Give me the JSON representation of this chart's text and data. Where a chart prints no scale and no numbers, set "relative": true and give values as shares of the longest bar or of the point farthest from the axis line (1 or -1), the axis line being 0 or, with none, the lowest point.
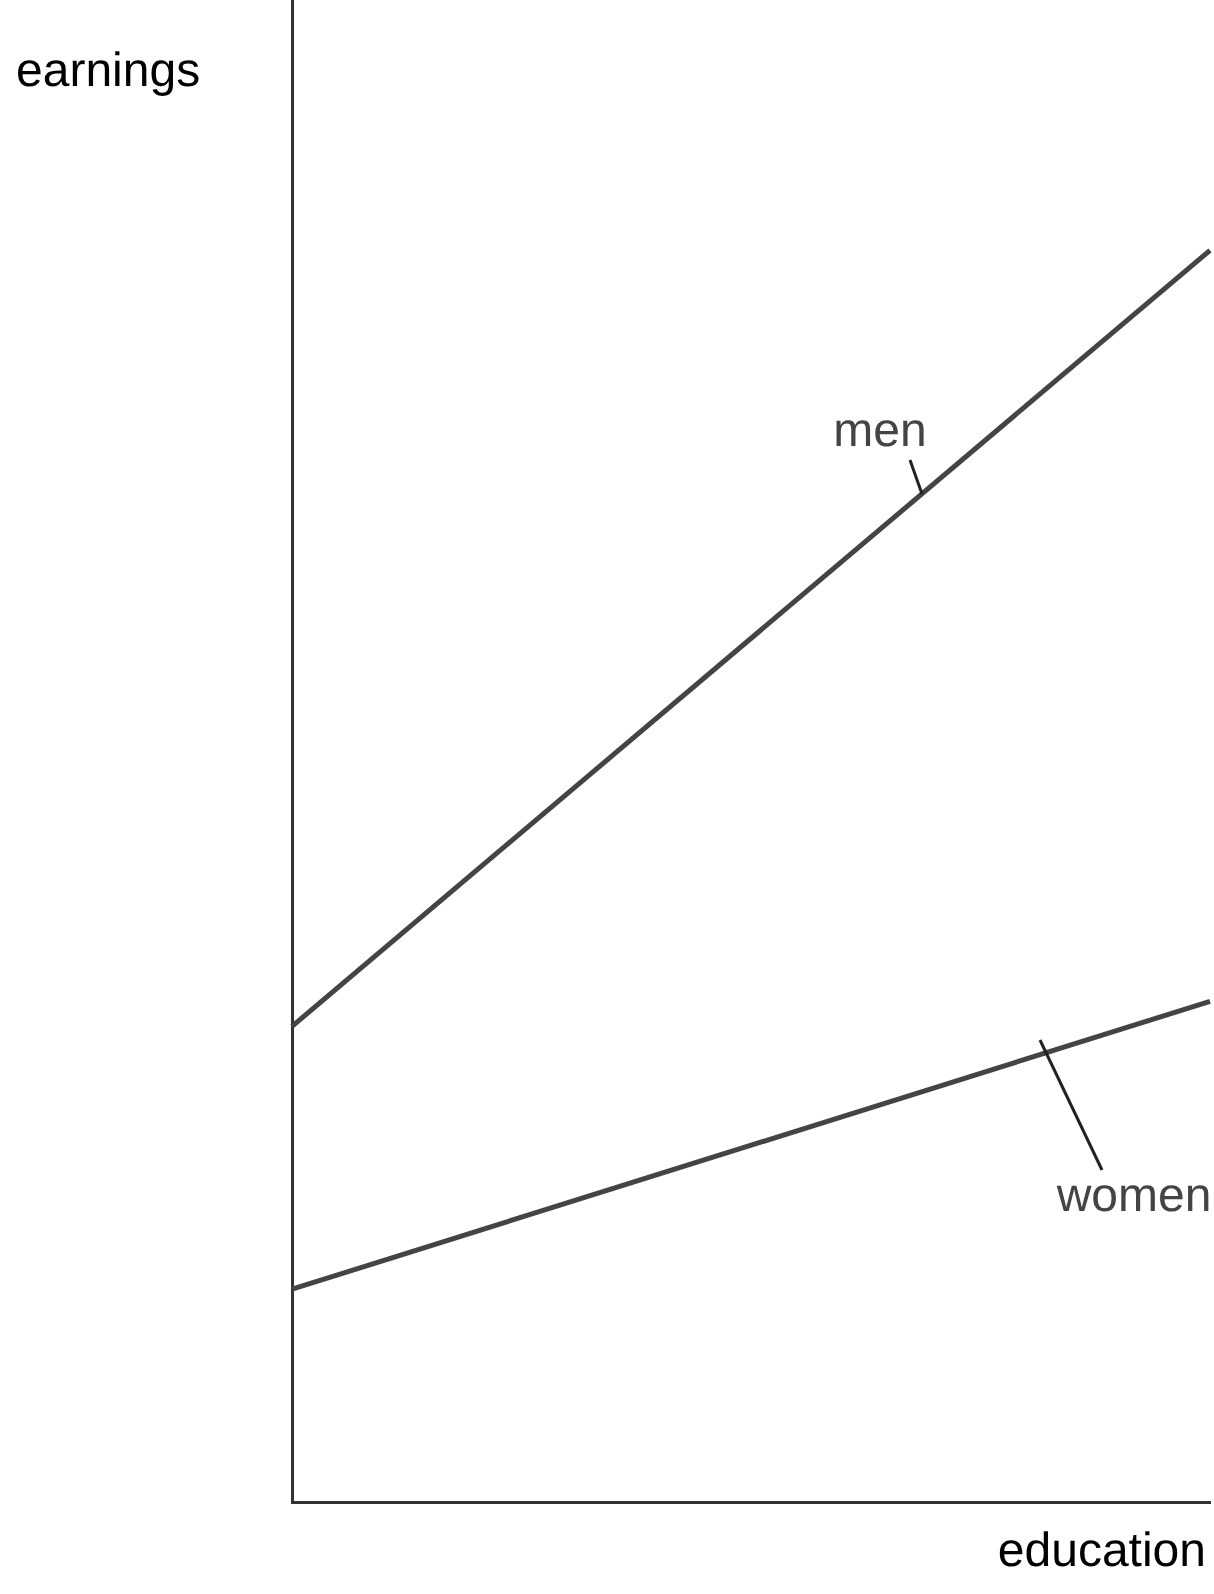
{
  "chart_data": {
    "type": "line",
    "relative": true,
    "xlabel": "education",
    "ylabel": "earnings",
    "categories": [
      null,
      null
    ],
    "grid": false,
    "legend": false,
    "marker": "none",
    "line_style": "solid",
    "series": [
      {
        "name": "men",
        "color": "#444444",
        "values": [
          0.38,
          1
        ]
      },
      {
        "name": "women",
        "color": "#444444",
        "values": [
          0.17,
          0.4
        ]
      }
    ]
  }
}
